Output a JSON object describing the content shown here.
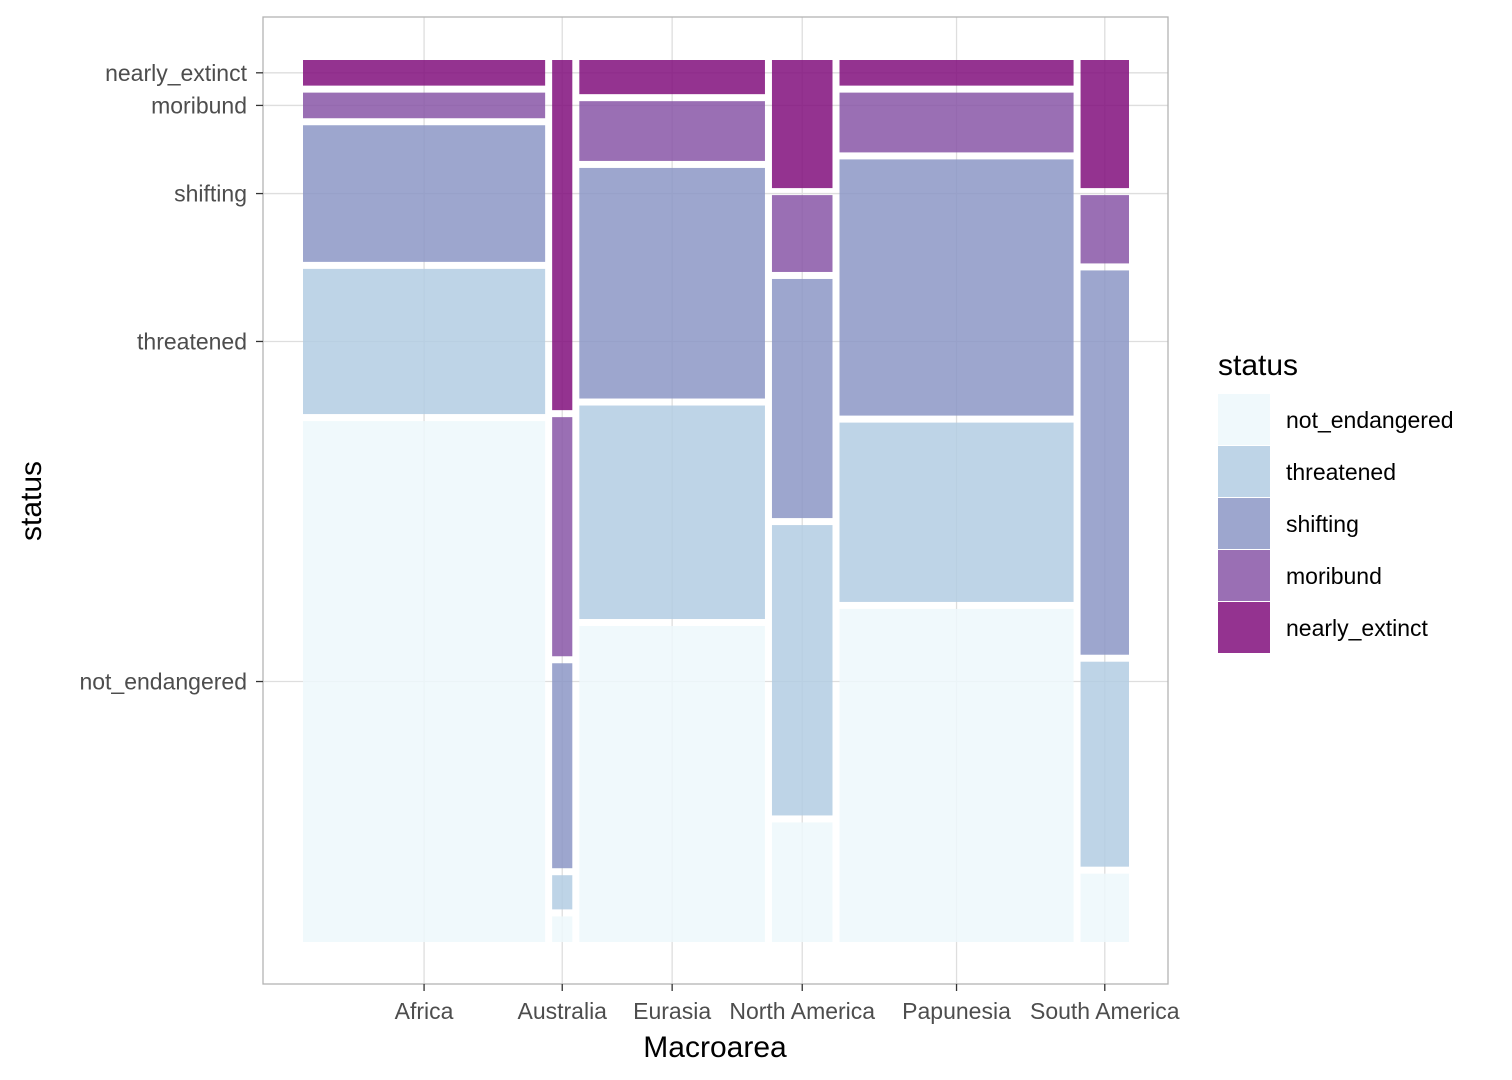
{
  "chart_data": {
    "type": "mosaic",
    "xlabel": "Macroarea",
    "ylabel": "status",
    "grid": true,
    "legend_position": "right",
    "legend_title": "status",
    "status_levels": [
      "not_endangered",
      "threatened",
      "shifting",
      "moribund",
      "nearly_extinct"
    ],
    "y_tick_labels": [
      "not_endangered",
      "threatened",
      "shifting",
      "moribund",
      "nearly_extinct"
    ],
    "colors": {
      "not_endangered": "#EDF8FB",
      "threatened": "#B3CDE3",
      "shifting": "#8C96C6",
      "moribund": "#8856A7",
      "nearly_extinct": "#810F7C"
    },
    "categories": [
      "Africa",
      "Australia",
      "Eurasia",
      "North America",
      "Papunesia",
      "South America"
    ],
    "x_widths": [
      0.3,
      0.025,
      0.23,
      0.075,
      0.29,
      0.06
    ],
    "series": [
      {
        "name": "not_endangered",
        "values": [
          0.61,
          0.03,
          0.37,
          0.14,
          0.39,
          0.08
        ]
      },
      {
        "name": "threatened",
        "values": [
          0.17,
          0.04,
          0.25,
          0.34,
          0.21,
          0.24
        ]
      },
      {
        "name": "shifting",
        "values": [
          0.16,
          0.24,
          0.27,
          0.28,
          0.3,
          0.45
        ]
      },
      {
        "name": "moribund",
        "values": [
          0.03,
          0.28,
          0.07,
          0.09,
          0.07,
          0.08
        ]
      },
      {
        "name": "nearly_extinct",
        "values": [
          0.03,
          0.41,
          0.04,
          0.15,
          0.03,
          0.15
        ]
      }
    ]
  }
}
